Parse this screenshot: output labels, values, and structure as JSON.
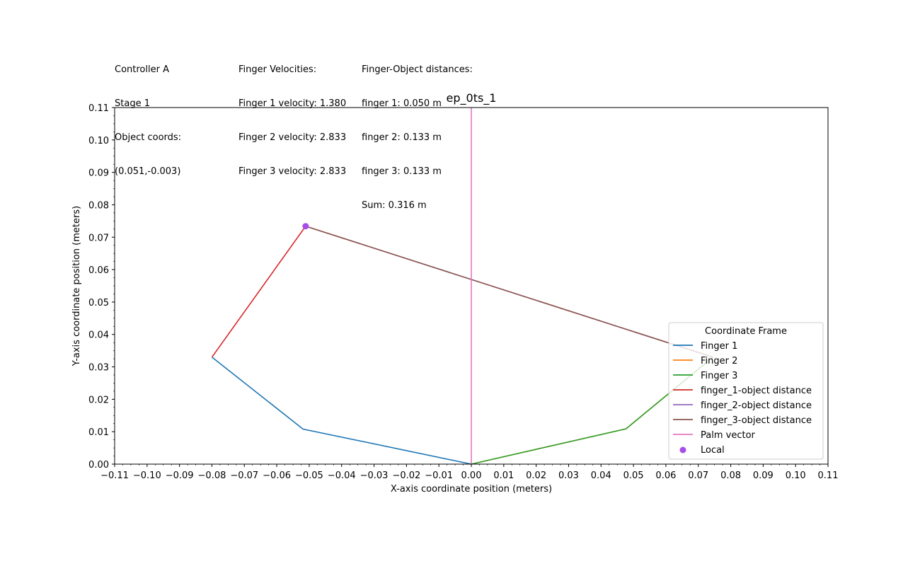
{
  "info": {
    "col_a": [
      "Controller A",
      "Stage 1",
      "Object coords:",
      "(0.051,-0.003)"
    ],
    "col_b": [
      "Finger Velocities:",
      "Finger 1 velocity: 1.380",
      "Finger 2 velocity: 2.833",
      "Finger 3 velocity: 2.833"
    ],
    "col_c": [
      "Finger-Object distances:",
      "finger 1: 0.050 m",
      "finger 2: 0.133 m",
      "finger 3: 0.133 m",
      "Sum: 0.316 m"
    ]
  },
  "chart_data": {
    "type": "line",
    "title": "ep_0ts_1",
    "xlabel": "X-axis coordinate position (meters)",
    "ylabel": "Y-axis coordinate position (meters)",
    "xlim": [
      -0.11,
      0.11
    ],
    "ylim": [
      0.0,
      0.11
    ],
    "xticks": [
      "-0.11",
      "-0.10",
      "-0.09",
      "-0.08",
      "-0.07",
      "-0.06",
      "-0.05",
      "-0.04",
      "-0.03",
      "-0.02",
      "-0.01",
      "0.00",
      "0.01",
      "0.02",
      "0.03",
      "0.04",
      "0.05",
      "0.06",
      "0.07",
      "0.08",
      "0.09",
      "0.10",
      "0.11"
    ],
    "yticks": [
      "0.00",
      "0.01",
      "0.02",
      "0.03",
      "0.04",
      "0.05",
      "0.06",
      "0.07",
      "0.08",
      "0.09",
      "0.10",
      "0.11"
    ],
    "legend": {
      "title": "Coordinate Frame",
      "placement": "lower-right"
    },
    "series": [
      {
        "name": "Finger 1",
        "color": "#1f77b4",
        "x": [
          0.0,
          -0.0519,
          -0.08
        ],
        "y": [
          0.0,
          0.0108,
          0.033
        ]
      },
      {
        "name": "Finger 2",
        "color": "#ff7f0e",
        "x": [
          0.0,
          0.0477,
          0.0745
        ],
        "y": [
          0.0,
          0.0109,
          0.033
        ]
      },
      {
        "name": "Finger 3",
        "color": "#2ca02c",
        "x": [
          0.0,
          0.0477,
          0.0745
        ],
        "y": [
          0.0,
          0.0109,
          0.033
        ]
      },
      {
        "name": "finger_1-object distance",
        "color": "#d62728",
        "x": [
          -0.08,
          -0.0511
        ],
        "y": [
          0.033,
          0.0734
        ]
      },
      {
        "name": "finger_2-object distance",
        "color": "#9467bd",
        "x": [
          0.0745,
          -0.0511
        ],
        "y": [
          0.033,
          0.0734
        ]
      },
      {
        "name": "finger_3-object distance",
        "color": "#8c564b",
        "x": [
          0.0745,
          -0.0511
        ],
        "y": [
          0.033,
          0.0734
        ]
      },
      {
        "name": "Palm vector",
        "color": "#e377c2",
        "x": [
          0.0,
          0.0
        ],
        "y": [
          0.0,
          0.11
        ]
      }
    ],
    "scatter": {
      "name": "Local",
      "color": "#a64ee8",
      "x": [
        -0.0511
      ],
      "y": [
        0.0734
      ]
    }
  }
}
